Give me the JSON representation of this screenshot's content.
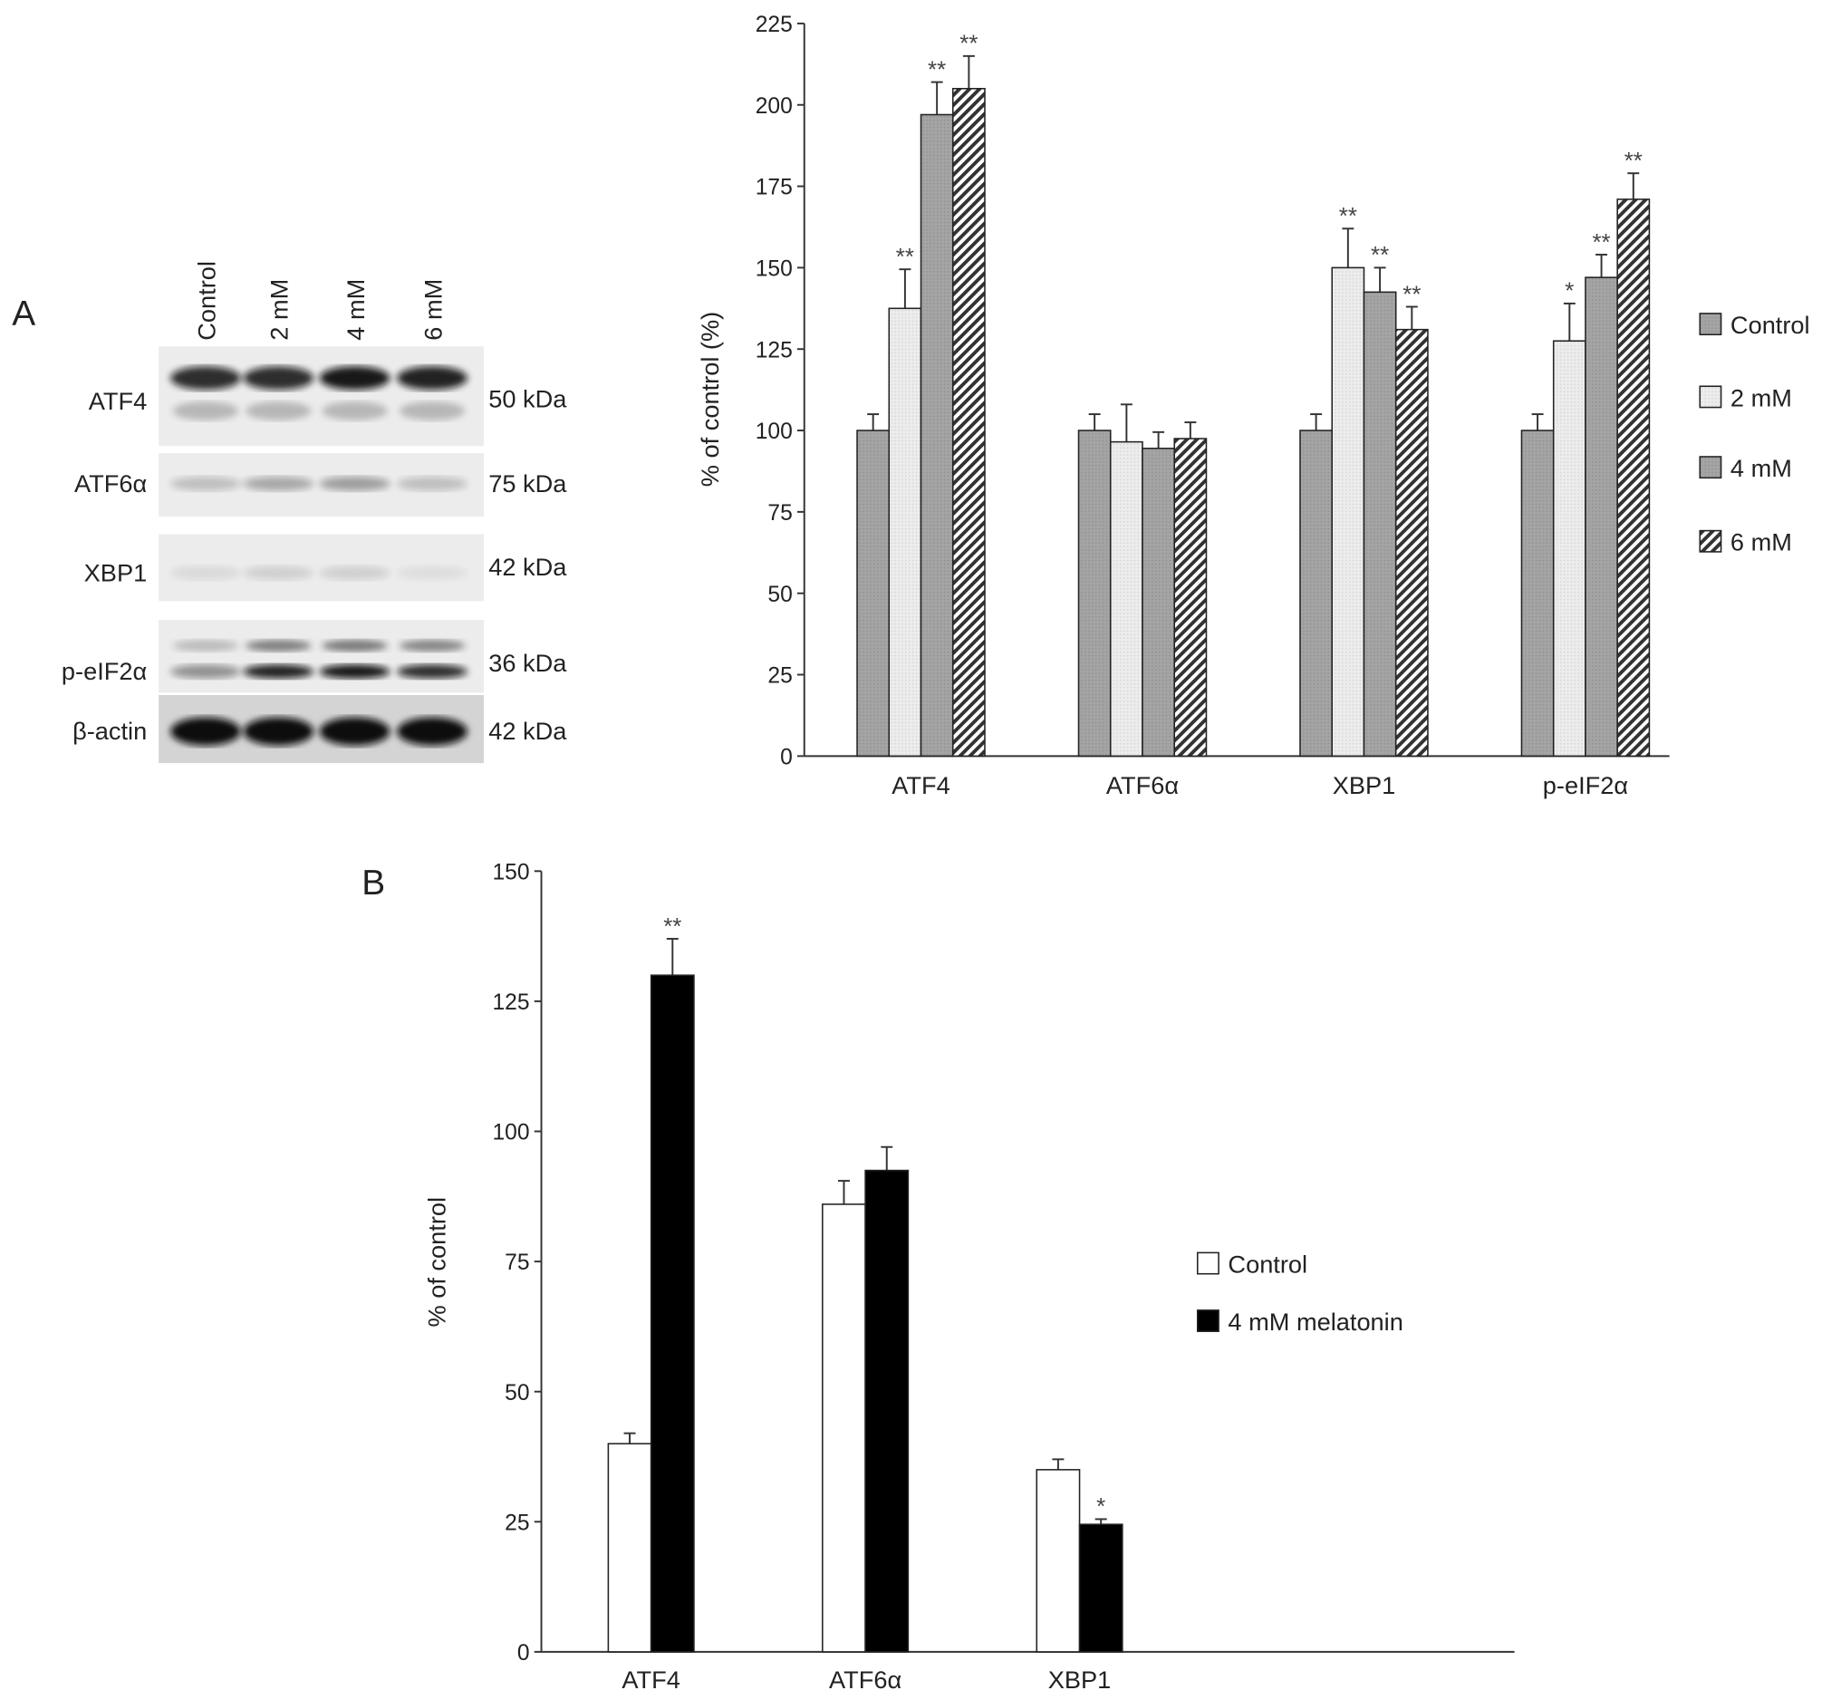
{
  "panel_labels": {
    "a": "A",
    "b": "B"
  },
  "blot": {
    "lanes": [
      "Control",
      "2 mM",
      "4 mM",
      "6 mM"
    ],
    "rows": [
      {
        "protein": "ATF4",
        "size": "50 kDa",
        "intensity": [
          0.85,
          0.85,
          0.95,
          0.9
        ]
      },
      {
        "protein": "ATF6α",
        "size": "75 kDa",
        "intensity": [
          0.2,
          0.3,
          0.35,
          0.2
        ]
      },
      {
        "protein": "XBP1",
        "size": "42 kDa",
        "intensity": [
          0.08,
          0.12,
          0.12,
          0.06
        ]
      },
      {
        "protein": "p-eIF2α",
        "size": "36 kDa",
        "intensity": [
          0.4,
          0.9,
          0.95,
          0.85
        ]
      },
      {
        "protein": "β-actin",
        "size": "42 kDa",
        "intensity": [
          1,
          1,
          1,
          1
        ]
      }
    ]
  },
  "chart_data": [
    {
      "type": "bar",
      "title": "",
      "ylabel": "% of control (%)",
      "xlabel": "",
      "ylim": [
        0,
        225
      ],
      "yticks": [
        0,
        25,
        50,
        75,
        100,
        125,
        150,
        175,
        200,
        225
      ],
      "categories": [
        "ATF4",
        "ATF6α",
        "XBP1",
        "p-eIF2α"
      ],
      "legend_position": "right",
      "series": [
        {
          "name": "Control",
          "fill": "dotted-gray",
          "values": [
            100,
            100,
            100,
            100
          ],
          "errors": [
            5,
            5,
            5,
            5
          ],
          "stars": [
            "",
            "",
            "",
            ""
          ]
        },
        {
          "name": "2 mM",
          "fill": "light",
          "values": [
            137.5,
            96.5,
            150,
            127.5
          ],
          "errors": [
            12,
            11.5,
            12,
            11.5
          ],
          "stars": [
            "**",
            "",
            "**",
            "*"
          ]
        },
        {
          "name": "4 mM",
          "fill": "dotted-gray",
          "values": [
            197,
            94.5,
            142.5,
            147
          ],
          "errors": [
            10,
            5,
            7.5,
            7
          ],
          "stars": [
            "**",
            "",
            "**",
            "**"
          ]
        },
        {
          "name": "6 mM",
          "fill": "hatched",
          "values": [
            205,
            97.5,
            131,
            171
          ],
          "errors": [
            10,
            5,
            7,
            8
          ],
          "stars": [
            "**",
            "",
            "**",
            "**"
          ]
        }
      ]
    },
    {
      "type": "bar",
      "title": "",
      "ylabel": "% of control",
      "xlabel": "",
      "ylim": [
        0,
        150
      ],
      "yticks": [
        0,
        25,
        50,
        75,
        100,
        125,
        150
      ],
      "categories": [
        "ATF4",
        "ATF6α",
        "XBP1"
      ],
      "legend_position": "right",
      "series": [
        {
          "name": "Control",
          "fill": "white",
          "values": [
            40,
            86,
            35
          ],
          "errors": [
            2,
            4.5,
            2
          ],
          "stars": [
            "",
            "",
            ""
          ]
        },
        {
          "name": "4 mM melatonin",
          "fill": "black",
          "values": [
            130,
            92.5,
            24.5
          ],
          "errors": [
            7,
            4.5,
            1
          ],
          "stars": [
            "**",
            "",
            "*"
          ]
        }
      ]
    }
  ]
}
